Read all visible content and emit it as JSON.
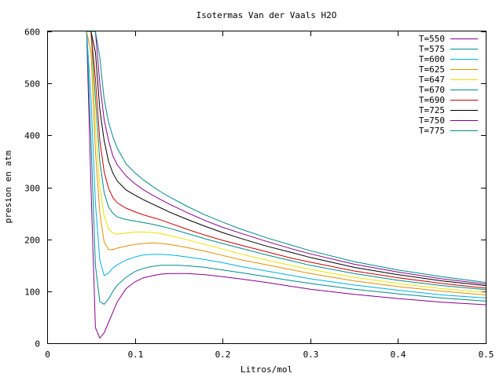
{
  "chart_data": {
    "type": "line",
    "title": "Isotermas Van der Vaals H2O",
    "xlabel": "Litros/mol",
    "ylabel": "presion en atm",
    "xlim": [
      0,
      0.5
    ],
    "ylim": [
      0,
      600
    ],
    "xticks": [
      "0",
      "0.1",
      "0.2",
      "0.3",
      "0.4",
      "0.5"
    ],
    "yticks": [
      "0",
      "100",
      "200",
      "300",
      "400",
      "500",
      "600"
    ],
    "grid": false,
    "legend_position": "top-right",
    "x": [
      0.045,
      0.05,
      0.055,
      0.06,
      0.065,
      0.07,
      0.075,
      0.08,
      0.09,
      0.1,
      0.11,
      0.12,
      0.13,
      0.14,
      0.15,
      0.16,
      0.18,
      0.2,
      0.22,
      0.25,
      0.28,
      0.3,
      0.35,
      0.4,
      0.45,
      0.5
    ],
    "series": [
      {
        "name": "T=550",
        "color": "#8a008a",
        "values": [
          600,
          300,
          30,
          10,
          20,
          40,
          60,
          80,
          105,
          118,
          126,
          130,
          133,
          134,
          134,
          134,
          132,
          128,
          124,
          117,
          109,
          104,
          94,
          86,
          79,
          74
        ]
      },
      {
        "name": "T=575",
        "color": "#008b8b",
        "values": [
          600,
          390,
          150,
          80,
          75,
          85,
          100,
          112,
          127,
          138,
          144,
          148,
          150,
          150,
          150,
          149,
          146,
          141,
          136,
          128,
          120,
          115,
          104,
          95,
          87,
          81
        ]
      },
      {
        "name": "T=600",
        "color": "#00b0e0",
        "values": [
          600,
          470,
          270,
          160,
          130,
          135,
          145,
          151,
          160,
          166,
          170,
          171,
          171,
          170,
          168,
          166,
          161,
          155,
          148,
          139,
          130,
          124,
          112,
          102,
          93,
          87
        ]
      },
      {
        "name": "T=625",
        "color": "#e09000",
        "values": [
          600,
          560,
          370,
          250,
          195,
          180,
          180,
          183,
          187,
          190,
          192,
          193,
          192,
          190,
          187,
          184,
          177,
          169,
          161,
          151,
          141,
          134,
          120,
          109,
          100,
          93
        ]
      },
      {
        "name": "T=647",
        "color": "#f0e000",
        "values": [
          600,
          600,
          420,
          300,
          245,
          220,
          212,
          210,
          212,
          214,
          214,
          213,
          211,
          207,
          203,
          199,
          190,
          181,
          172,
          160,
          149,
          142,
          127,
          115,
          105,
          98
        ]
      },
      {
        "name": "T=670",
        "color": "#008b8b",
        "values": [
          600,
          600,
          470,
          350,
          290,
          262,
          250,
          243,
          238,
          235,
          232,
          229,
          225,
          221,
          216,
          211,
          201,
          192,
          183,
          170,
          158,
          150,
          134,
          121,
          111,
          103
        ]
      },
      {
        "name": "T=690",
        "color": "#cc0000",
        "values": [
          600,
          600,
          510,
          390,
          330,
          298,
          280,
          270,
          260,
          253,
          247,
          242,
          237,
          231,
          225,
          219,
          208,
          198,
          189,
          176,
          163,
          156,
          139,
          126,
          115,
          106
        ]
      },
      {
        "name": "T=725",
        "color": "#000000",
        "values": [
          600,
          600,
          560,
          450,
          390,
          350,
          327,
          312,
          295,
          285,
          276,
          268,
          260,
          252,
          245,
          238,
          225,
          213,
          202,
          187,
          174,
          165,
          146,
          132,
          120,
          111
        ]
      },
      {
        "name": "T=750",
        "color": "#8a008a",
        "values": [
          600,
          600,
          600,
          500,
          430,
          390,
          360,
          343,
          322,
          307,
          295,
          285,
          276,
          267,
          259,
          251,
          236,
          223,
          212,
          196,
          181,
          172,
          152,
          137,
          124,
          114
        ]
      },
      {
        "name": "T=775",
        "color": "#008b8b",
        "values": [
          600,
          600,
          600,
          550,
          470,
          425,
          397,
          375,
          345,
          328,
          314,
          302,
          291,
          281,
          272,
          263,
          247,
          233,
          220,
          203,
          188,
          178,
          157,
          141,
          128,
          117
        ]
      }
    ]
  }
}
